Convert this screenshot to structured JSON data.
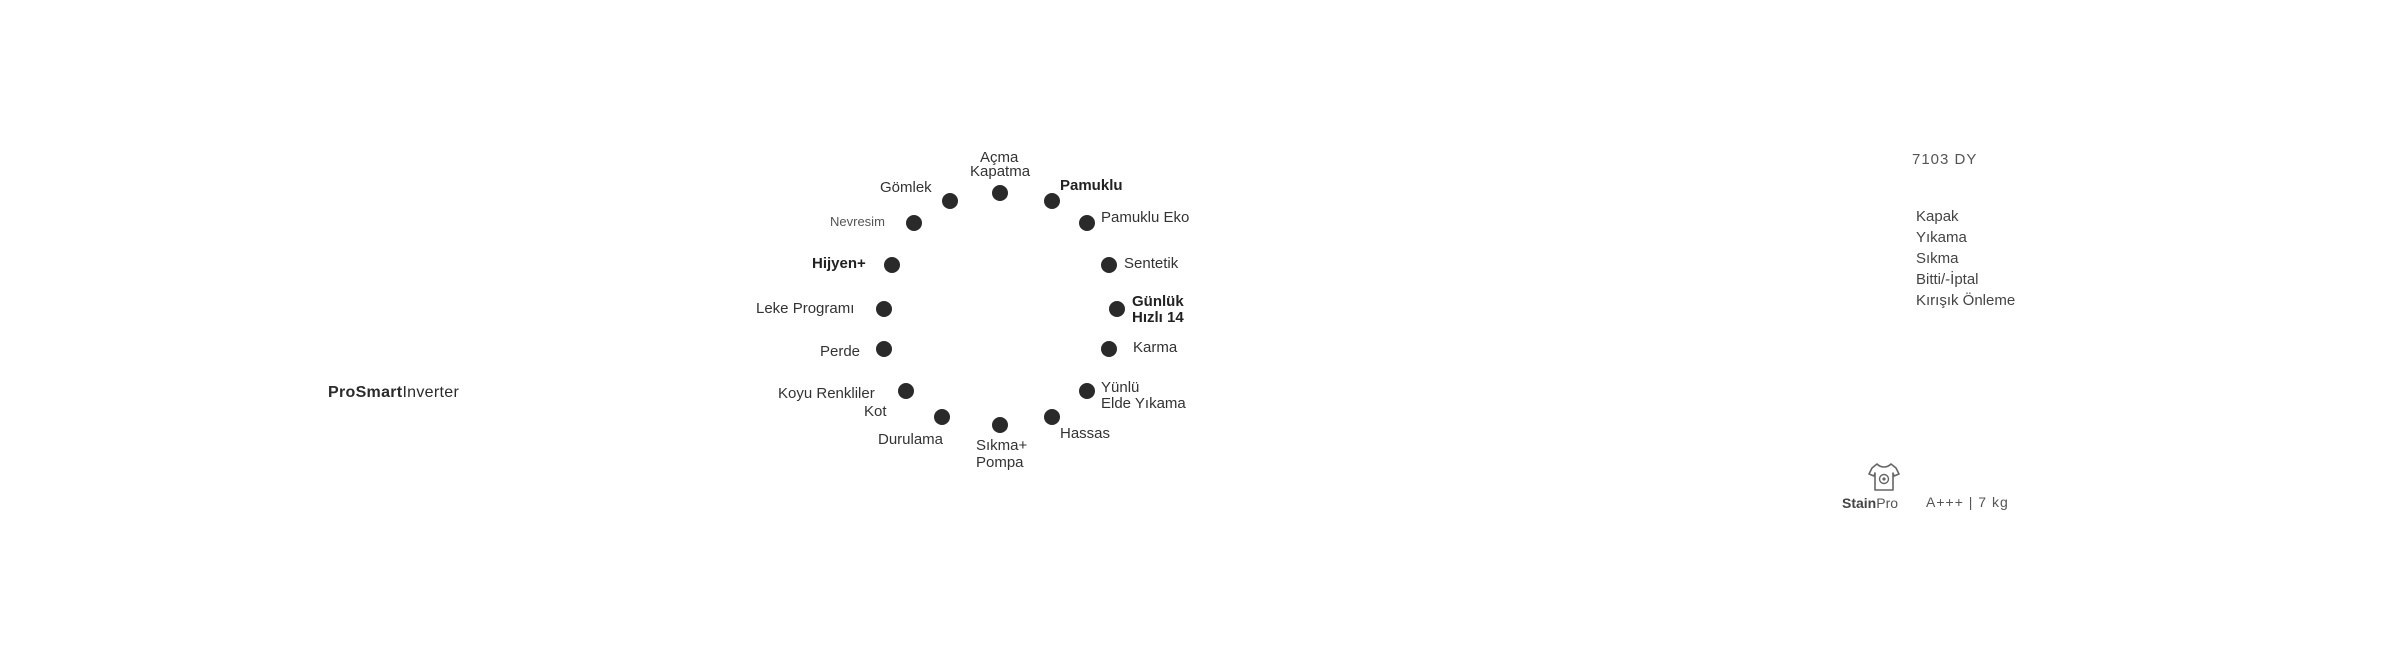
{
  "brand": {
    "bold": "ProSmart",
    "rest": "Inverter"
  },
  "programs": {
    "acma_kapatma": {
      "line1": "Açma",
      "line2": "Kapatma"
    },
    "pamuklu": "Pamuklu",
    "pamuklu_eko": "Pamuklu Eko",
    "sentetik": "Sentetik",
    "gunluk_hizli": {
      "line1": "Günlük",
      "line2": "Hızlı 14"
    },
    "karma": "Karma",
    "yunlu": {
      "line1": "Yünlü",
      "line2": "Elde Yıkama"
    },
    "hassas": "Hassas",
    "sikma_pompa": {
      "line1": "Sıkma+",
      "line2": "Pompa"
    },
    "durulama": "Durulama",
    "koyu_renkliler": {
      "line1": "Koyu Renkliler",
      "line2": "Kot"
    },
    "perde": "Perde",
    "leke": "Leke Programı",
    "hijyen": "Hijyen+",
    "nevresim": "Nevresim",
    "gomlek": "Gömlek"
  },
  "model": "7103 DY",
  "status_list": [
    "Kapak",
    "Yıkama",
    "Sıkma",
    "Bitti/-İptal",
    "Kırışık Önleme"
  ],
  "stainpro": {
    "bold": "Stain",
    "rest": "Pro"
  },
  "energy": "A+++ | 7 kg",
  "colors": {
    "dot": "#2a2a2a",
    "text": "#2b2b2b"
  }
}
